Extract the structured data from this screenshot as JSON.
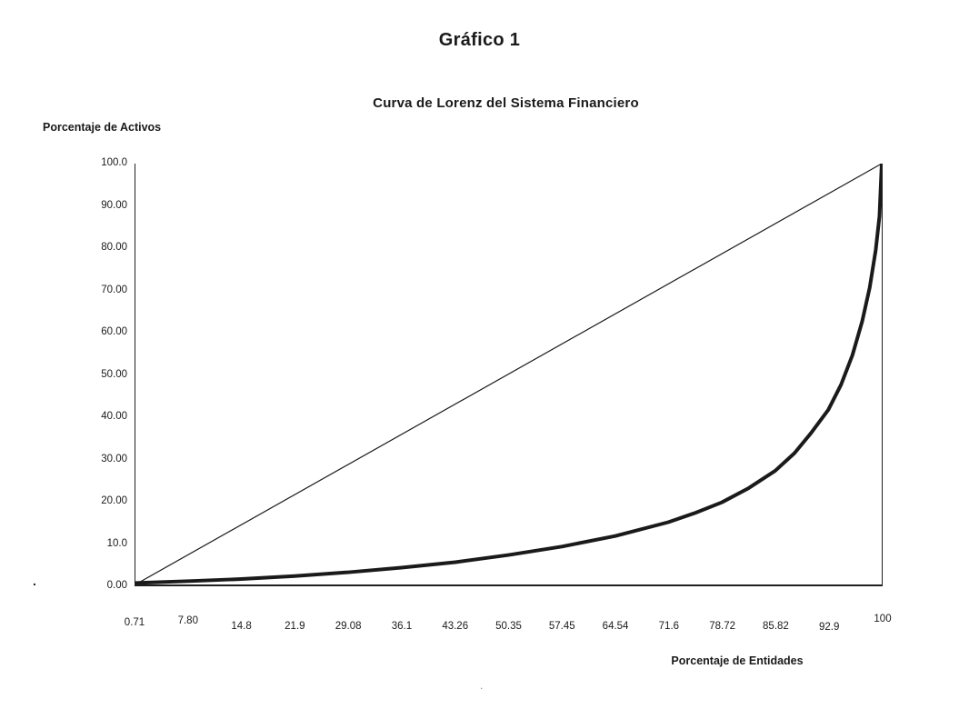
{
  "page": {
    "title": "Gráfico 1"
  },
  "artifacts": {
    "dot1": ".",
    "dot2": "."
  },
  "chart_data": {
    "type": "line",
    "title": "Curva de Lorenz del Sistema Financiero",
    "ylabel": "Porcentaje de Activos",
    "xlabel": "Porcentaje de Entidades",
    "ink": "#1a1a1a",
    "grid": false,
    "legend": "none",
    "xlim": [
      0.71,
      100
    ],
    "ylim": [
      0,
      100
    ],
    "x_ticks": [
      "0.71",
      "7.80",
      "14.8",
      "21.9",
      "29.08",
      "36.1",
      "43.26",
      "50.35",
      "57.45",
      "64.54",
      "71.6",
      "78.72",
      "85.82",
      "92.9",
      "100"
    ],
    "y_ticks": [
      "100.0",
      "90.00",
      "80.00",
      "70.00",
      "60.00",
      "50.00",
      "40.00",
      "30.00",
      "20.00",
      "10.0",
      "0.00"
    ],
    "series": [
      {
        "name": "equality-line",
        "stroke_width": 1.2,
        "x": [
          0.71,
          100
        ],
        "y": [
          0,
          100
        ]
      },
      {
        "name": "lorenz-curve",
        "stroke_width": 4,
        "x": [
          0.71,
          7.8,
          14.8,
          21.9,
          29.08,
          36.1,
          43.26,
          50.35,
          57.45,
          64.54,
          71.6,
          75.2,
          78.72,
          82.3,
          85.82,
          88.4,
          90.6,
          92.9,
          94.6,
          96.1,
          97.4,
          98.4,
          99.2,
          99.7,
          100
        ],
        "y": [
          0.35,
          0.8,
          1.3,
          2.0,
          2.9,
          4.0,
          5.3,
          7.0,
          9.0,
          11.5,
          14.8,
          17.0,
          19.5,
          22.9,
          27.0,
          31.2,
          36.0,
          41.5,
          47.5,
          54.5,
          62.5,
          70.5,
          79.5,
          87.5,
          100
        ]
      }
    ]
  }
}
